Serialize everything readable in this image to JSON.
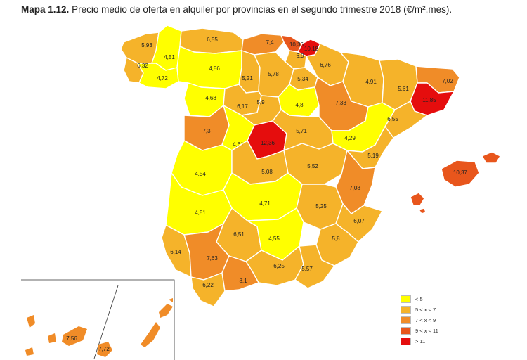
{
  "title": {
    "prefix": "Mapa 1.12.",
    "text": "Precio medio de oferta en alquiler por provincias en el segundo trimestre 2018 (€/m².mes)."
  },
  "colors": {
    "lt5": "#ffff00",
    "5to7": "#f5b32a",
    "7to9": "#f08c28",
    "9to11": "#e8561c",
    "gt11": "#e50d0d"
  },
  "legend": [
    {
      "label": "< 5",
      "color_key": "lt5"
    },
    {
      "label": "5 < x < 7",
      "color_key": "5to7"
    },
    {
      "label": "7 < x < 9",
      "color_key": "7to9"
    },
    {
      "label": "9 < x < 11",
      "color_key": "9to11"
    },
    {
      "label": "> 11",
      "color_key": "gt11"
    }
  ],
  "values": {
    "a_coruna": "5,93",
    "lugo": "4,51",
    "asturias": "6,55",
    "cantabria": "7,4",
    "bizkaia": "10,36",
    "gipuzkoa": "10,18",
    "alava": "6,9",
    "navarra": "6,76",
    "pontevedra": "6,32",
    "ourense": "4,72",
    "leon": "4,86",
    "palencia": "5,21",
    "burgos": "5,78",
    "la_rioja": "5,34",
    "huesca": "4,91",
    "lleida": "5,61",
    "girona": "7,02",
    "barcelona": "11,85",
    "zamora": "4,68",
    "valladolid": "6,17",
    "segovia": "5,9",
    "soria": "4,8",
    "zaragoza": "7,33",
    "salamanca": "7,3",
    "avila": "4,61",
    "madrid": "12,36",
    "guadalajara": "5,71",
    "teruel": "4,29",
    "tarragona": "6,55",
    "caceres": "4,54",
    "toledo": "5,08",
    "cuenca": "5,52",
    "castellon": "5,19",
    "valencia": "7,08",
    "badajoz": "4,81",
    "ciudad_real": "4,71",
    "albacete": "5,25",
    "alicante": "6,07",
    "cordoba": "6,51",
    "jaen": "4,55",
    "murcia": "5,8",
    "huelva": "6,14",
    "sevilla": "7,63",
    "granada": "6,25",
    "almeria": "5,57",
    "cadiz": "6,22",
    "malaga": "8,1",
    "baleares": "10,37",
    "santa_cruz": "7,56",
    "las_palmas": "7,72"
  }
}
